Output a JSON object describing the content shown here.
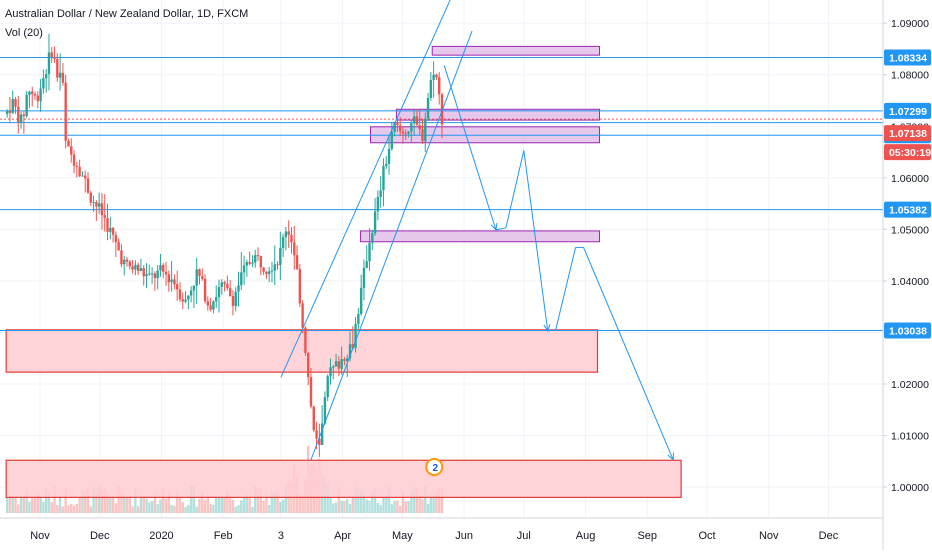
{
  "header": {
    "symbol_title": "Australian Dollar / New Zealand Dollar, 1D, FXCM",
    "indicator": "Vol (20)",
    "countdown": "05:30:19"
  },
  "chart_data": {
    "type": "candlestick",
    "title": "Australian Dollar / New Zealand Dollar, 1D, FXCM",
    "xlabel": "",
    "ylabel": "",
    "ylim": [
      0.994,
      1.0945
    ],
    "grid": true,
    "x_ticks": [
      "Nov",
      "Dec",
      "2020",
      "Feb",
      "3",
      "Apr",
      "May",
      "Jun",
      "Jul",
      "Aug",
      "Sep",
      "Oct",
      "Nov",
      "Dec"
    ],
    "y_ticks": [
      "1.09000",
      "1.08000",
      "1.07000",
      "1.06000",
      "1.05000",
      "1.04000",
      "1.03000",
      "1.02000",
      "1.01000",
      "1.00000"
    ],
    "current_price": {
      "value": "1.07138",
      "color": "#ef5350"
    },
    "horizontal_levels": [
      {
        "label": "1.08334",
        "value": 1.08334
      },
      {
        "label": "1.07299",
        "value": 1.07299
      },
      {
        "label": "1.06826",
        "value": 1.06826
      },
      {
        "label": "1.05382",
        "value": 1.05382
      },
      {
        "label": "1.03038",
        "value": 1.03038
      }
    ],
    "extra_hline": 1.0707,
    "zones_purple": [
      {
        "t0": "2020-05-16",
        "t1": "2020-08-08",
        "y0": 1.0838,
        "y1": 1.0855
      },
      {
        "t0": "2020-04-28",
        "t1": "2020-08-08",
        "y0": 1.0712,
        "y1": 1.0733
      },
      {
        "t0": "2020-04-15",
        "t1": "2020-08-08",
        "y0": 1.0668,
        "y1": 1.0699
      },
      {
        "t0": "2020-04-10",
        "t1": "2020-08-08",
        "y0": 1.0476,
        "y1": 1.0497
      }
    ],
    "zones_red": [
      {
        "t0": "2019-10-15",
        "t1": "2020-08-07",
        "y0": 1.0223,
        "y1": 1.0305
      },
      {
        "t0": "2019-10-15",
        "t1": "2020-09-18",
        "y0": 0.998,
        "y1": 1.0052
      }
    ],
    "trend_lines": [
      {
        "t0": "2020-03-01",
        "y0": 1.0213,
        "t1": "2020-05-25",
        "y1": 1.0945
      },
      {
        "t0": "2020-03-16",
        "y0": 1.0052,
        "t1": "2020-06-05",
        "y1": 1.0885
      }
    ],
    "projection_path": [
      {
        "t": "2020-05-22",
        "y": 1.0818
      },
      {
        "t": "2020-06-17",
        "y": 1.0499
      },
      {
        "t": "2020-06-22",
        "y": 1.0503
      },
      {
        "t": "2020-07-01",
        "y": 1.0653
      },
      {
        "t": "2020-07-13",
        "y": 1.0303
      },
      {
        "t": "2020-07-17",
        "y": 1.0305
      },
      {
        "t": "2020-07-27",
        "y": 1.0465
      },
      {
        "t": "2020-07-31",
        "y": 1.0465
      },
      {
        "t": "2020-09-14",
        "y": 1.0053
      }
    ],
    "close_series": [
      {
        "d": "2019-10-15",
        "v": 1.0724
      },
      {
        "d": "2019-10-18",
        "v": 1.0747
      },
      {
        "d": "2019-10-23",
        "v": 1.0705
      },
      {
        "d": "2019-10-26",
        "v": 1.0776
      },
      {
        "d": "2019-10-30",
        "v": 1.0752
      },
      {
        "d": "2019-11-03",
        "v": 1.0798
      },
      {
        "d": "2019-11-07",
        "v": 1.085
      },
      {
        "d": "2019-11-10",
        "v": 1.0793
      },
      {
        "d": "2019-11-12",
        "v": 1.0815
      },
      {
        "d": "2019-11-14",
        "v": 1.0658
      },
      {
        "d": "2019-11-20",
        "v": 1.0627
      },
      {
        "d": "2019-11-27",
        "v": 1.056
      },
      {
        "d": "2019-12-03",
        "v": 1.0525
      },
      {
        "d": "2019-12-08",
        "v": 1.048
      },
      {
        "d": "2019-12-14",
        "v": 1.0428
      },
      {
        "d": "2019-12-20",
        "v": 1.0423
      },
      {
        "d": "2019-12-26",
        "v": 1.0405
      },
      {
        "d": "2020-01-01",
        "v": 1.0418
      },
      {
        "d": "2020-01-07",
        "v": 1.0402
      },
      {
        "d": "2020-01-13",
        "v": 1.0358
      },
      {
        "d": "2020-01-19",
        "v": 1.0418
      },
      {
        "d": "2020-01-25",
        "v": 1.0352
      },
      {
        "d": "2020-01-31",
        "v": 1.039
      },
      {
        "d": "2020-02-06",
        "v": 1.0366
      },
      {
        "d": "2020-02-10",
        "v": 1.0407
      },
      {
        "d": "2020-02-16",
        "v": 1.045
      },
      {
        "d": "2020-02-23",
        "v": 1.0427
      },
      {
        "d": "2020-02-29",
        "v": 1.0444
      },
      {
        "d": "2020-03-04",
        "v": 1.0512
      },
      {
        "d": "2020-03-09",
        "v": 1.0418
      },
      {
        "d": "2020-03-13",
        "v": 1.0282
      },
      {
        "d": "2020-03-17",
        "v": 1.012
      },
      {
        "d": "2020-03-20",
        "v": 1.0065
      },
      {
        "d": "2020-03-25",
        "v": 1.0218
      },
      {
        "d": "2020-03-31",
        "v": 1.0245
      },
      {
        "d": "2020-04-06",
        "v": 1.028
      },
      {
        "d": "2020-04-10",
        "v": 1.037
      },
      {
        "d": "2020-04-14",
        "v": 1.047
      },
      {
        "d": "2020-04-18",
        "v": 1.054
      },
      {
        "d": "2020-04-22",
        "v": 1.062
      },
      {
        "d": "2020-04-27",
        "v": 1.07
      },
      {
        "d": "2020-05-01",
        "v": 1.0685
      },
      {
        "d": "2020-05-06",
        "v": 1.071
      },
      {
        "d": "2020-05-11",
        "v": 1.068
      },
      {
        "d": "2020-05-14",
        "v": 1.076
      },
      {
        "d": "2020-05-17",
        "v": 1.0818
      },
      {
        "d": "2020-05-19",
        "v": 1.077
      },
      {
        "d": "2020-05-20",
        "v": 1.074
      },
      {
        "d": "2020-05-21",
        "v": 1.07138
      }
    ],
    "volume_max_note": "volume bars shown at bottom, relative only"
  },
  "colors": {
    "level_line": "#2196f3",
    "up_candle": "#26a69a",
    "down_candle": "#ef5350",
    "purple_zone": "#e1bee7",
    "purple_zone_border": "#9c27b0",
    "red_zone": "#ffcdd2",
    "red_zone_border": "#e53935",
    "price_label_bg": "#2196f3",
    "current_price_bg": "#ef5350"
  },
  "badge": {
    "count": "2"
  }
}
